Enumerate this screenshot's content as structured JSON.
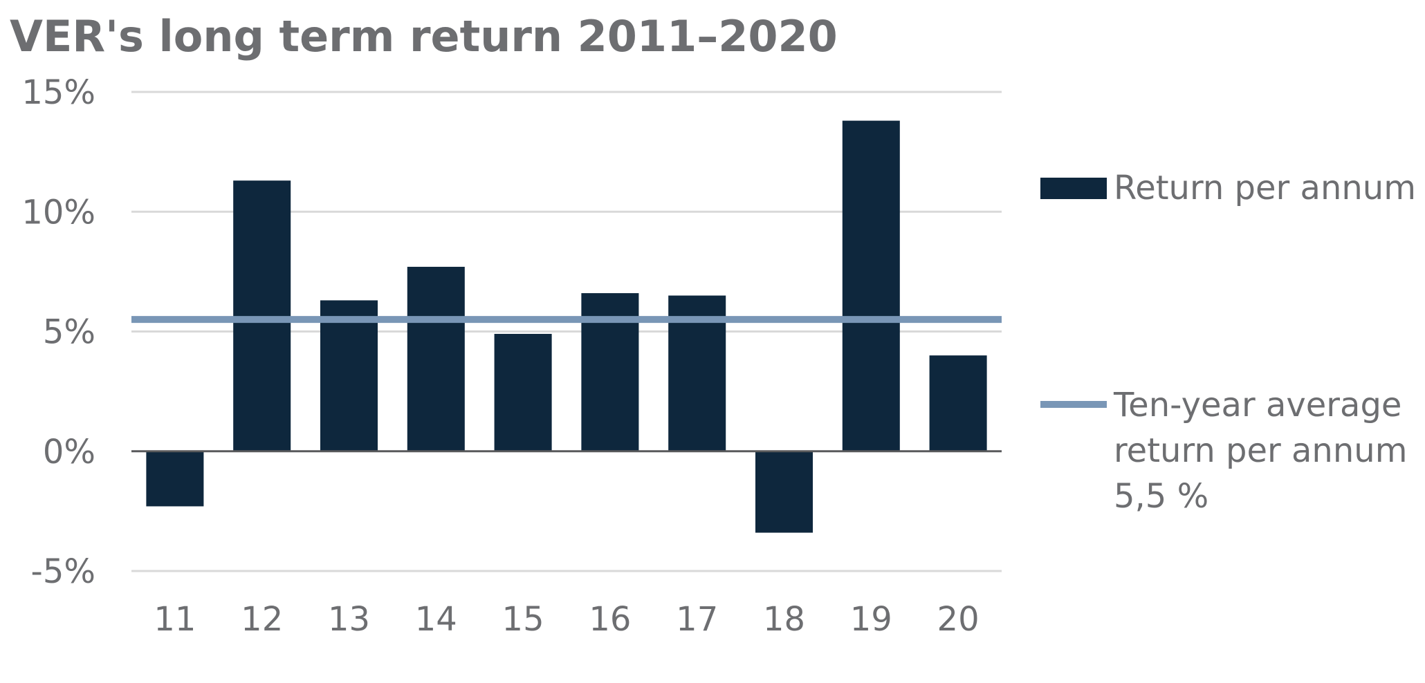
{
  "chart_data": {
    "type": "bar",
    "title": "VER's long term return 2011–2020",
    "categories": [
      "11",
      "12",
      "13",
      "14",
      "15",
      "16",
      "17",
      "18",
      "19",
      "20"
    ],
    "series": [
      {
        "name": "Return per annum",
        "values": [
          -2.3,
          11.3,
          6.3,
          7.7,
          4.9,
          6.6,
          6.5,
          -3.4,
          13.8,
          4.0
        ],
        "color": "#0e273d"
      }
    ],
    "average": {
      "value": 5.5,
      "legend_lines": [
        "Ten-year average",
        "return per annum",
        "5,5 %"
      ],
      "color": "#7996b6"
    },
    "ylim": [
      -5,
      15
    ],
    "yticks": [
      15,
      10,
      5,
      0,
      -5
    ],
    "ytick_labels": [
      "15%",
      "10%",
      "5%",
      "0%",
      "-5%"
    ],
    "xlabel": "",
    "ylabel": "",
    "grid": true,
    "legend_position": "right"
  }
}
